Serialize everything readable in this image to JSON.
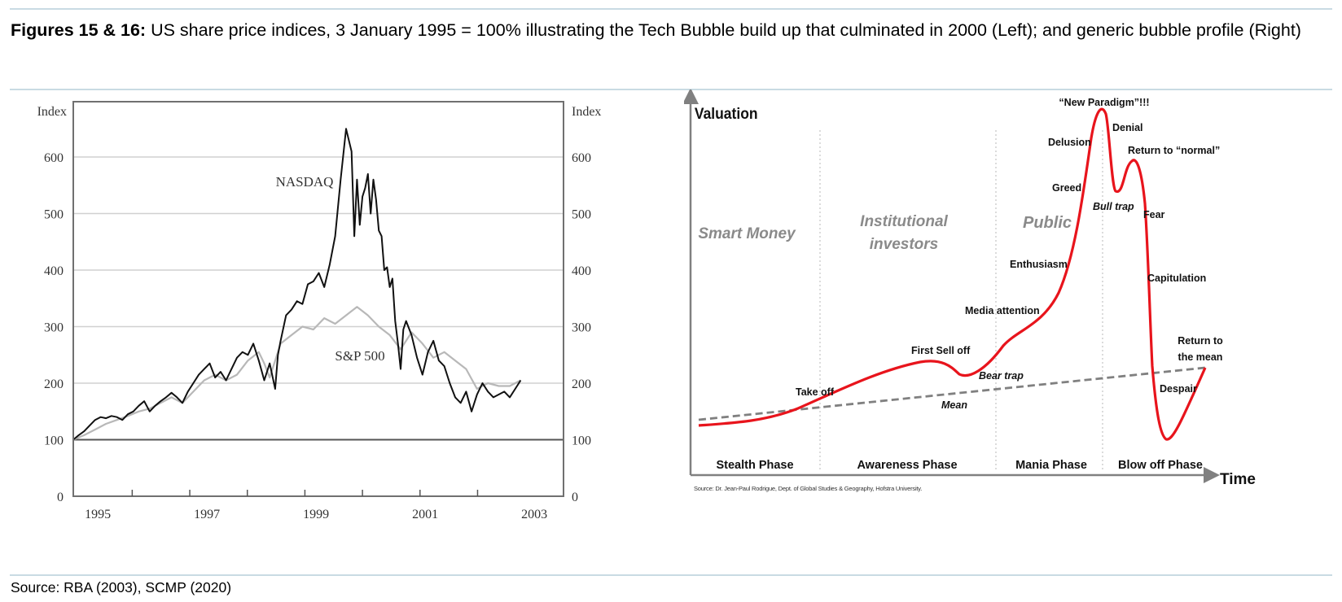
{
  "title": {
    "bold": "Figures 15 & 16:",
    "text": " US share price indices, 3 January 1995 = 100% illustrating the Tech Bubble build up that culminated in 2000 (Left); and generic bubble profile (Right)"
  },
  "source": "Source: RBA (2003), SCMP (2020)",
  "chart_data": [
    {
      "type": "line",
      "title": "US share price indices",
      "ylabel_left": "Index",
      "ylabel_right": "Index",
      "ylim": [
        0,
        700
      ],
      "yticks": [
        "0",
        "100",
        "200",
        "300",
        "400",
        "500",
        "600"
      ],
      "yticks_values": [
        0,
        100,
        200,
        300,
        400,
        500,
        600
      ],
      "xticks": [
        "1995",
        "1997",
        "1999",
        "2001",
        "2003"
      ],
      "xlim": [
        1995.0,
        2003.5
      ],
      "grid": true,
      "series": [
        {
          "name": "NASDAQ",
          "color": "#111111",
          "x": [
            1995.0,
            1995.1,
            1995.2,
            1995.3,
            1995.4,
            1995.5,
            1995.6,
            1995.7,
            1995.8,
            1995.9,
            1996.0,
            1996.1,
            1996.2,
            1996.3,
            1996.4,
            1996.5,
            1996.6,
            1996.7,
            1996.8,
            1996.9,
            1997.0,
            1997.1,
            1997.2,
            1997.3,
            1997.4,
            1997.5,
            1997.6,
            1997.7,
            1997.8,
            1997.9,
            1998.0,
            1998.1,
            1998.2,
            1998.3,
            1998.4,
            1998.5,
            1998.6,
            1998.7,
            1998.75,
            1998.8,
            1998.9,
            1999.0,
            1999.1,
            1999.2,
            1999.3,
            1999.4,
            1999.5,
            1999.6,
            1999.7,
            1999.8,
            1999.9,
            2000.0,
            2000.1,
            2000.15,
            2000.2,
            2000.25,
            2000.3,
            2000.35,
            2000.4,
            2000.45,
            2000.5,
            2000.55,
            2000.6,
            2000.65,
            2000.7,
            2000.75,
            2000.8,
            2000.85,
            2000.9,
            2000.95,
            2001.0,
            2001.05,
            2001.1,
            2001.2,
            2001.3,
            2001.4,
            2001.5,
            2001.6,
            2001.7,
            2001.8,
            2001.9,
            2002.0,
            2002.1,
            2002.2,
            2002.3,
            2002.4,
            2002.5,
            2002.6,
            2002.7,
            2002.8,
            2002.9,
            2003.0,
            2003.1,
            2003.2
          ],
          "values": [
            100,
            108,
            115,
            125,
            135,
            140,
            138,
            142,
            140,
            135,
            145,
            150,
            160,
            168,
            150,
            160,
            168,
            175,
            183,
            175,
            165,
            185,
            200,
            215,
            225,
            235,
            210,
            220,
            205,
            225,
            245,
            255,
            250,
            270,
            240,
            205,
            235,
            190,
            250,
            275,
            320,
            330,
            345,
            340,
            375,
            380,
            395,
            370,
            410,
            460,
            560,
            650,
            610,
            460,
            560,
            480,
            530,
            545,
            570,
            500,
            560,
            525,
            470,
            460,
            400,
            405,
            370,
            385,
            310,
            270,
            225,
            295,
            310,
            285,
            245,
            215,
            255,
            275,
            240,
            230,
            200,
            175,
            165,
            185,
            150,
            180,
            200,
            185,
            175,
            180,
            185,
            175,
            190,
            205
          ]
        },
        {
          "name": "S&P 500",
          "color": "#b8b8b8",
          "x": [
            1995.0,
            1995.2,
            1995.4,
            1995.6,
            1995.8,
            1996.0,
            1996.2,
            1996.4,
            1996.6,
            1996.8,
            1997.0,
            1997.2,
            1997.4,
            1997.6,
            1997.8,
            1998.0,
            1998.2,
            1998.4,
            1998.5,
            1998.6,
            1998.8,
            1999.0,
            1999.2,
            1999.4,
            1999.6,
            1999.8,
            2000.0,
            2000.2,
            2000.4,
            2000.6,
            2000.8,
            2001.0,
            2001.2,
            2001.4,
            2001.6,
            2001.8,
            2002.0,
            2002.2,
            2002.4,
            2002.6,
            2002.8,
            2003.0,
            2003.2
          ],
          "values": [
            100,
            108,
            118,
            128,
            135,
            142,
            150,
            155,
            165,
            175,
            165,
            185,
            205,
            215,
            205,
            215,
            240,
            255,
            235,
            210,
            270,
            285,
            300,
            295,
            315,
            305,
            320,
            335,
            320,
            300,
            285,
            260,
            290,
            270,
            245,
            255,
            240,
            225,
            190,
            200,
            195,
            195,
            205
          ]
        }
      ],
      "annotations": [
        "NASDAQ",
        "S&P 500"
      ]
    },
    {
      "type": "line",
      "title": "Generic bubble profile",
      "ylabel": "Valuation",
      "xlabel": "Time",
      "phases": [
        "Stealth Phase",
        "Awareness Phase",
        "Mania Phase",
        "Blow off Phase"
      ],
      "participants": [
        "Smart Money",
        "Institutional investors",
        "Public"
      ],
      "participant_lines": [
        [
          "Smart Money"
        ],
        [
          "Institutional",
          "investors"
        ],
        [
          "Public"
        ]
      ],
      "series": [
        {
          "name": "Valuation",
          "color": "#e8141c"
        },
        {
          "name": "Mean",
          "color": "#808080",
          "style": "dashed"
        }
      ],
      "labels": {
        "new_paradigm": "“New Paradigm”!!!",
        "denial": "Denial",
        "delusion": "Delusion",
        "return_normal": "Return to “normal”",
        "greed": "Greed",
        "bull_trap": "Bull trap",
        "fear": "Fear",
        "enthusiasm": "Enthusiasm",
        "capitulation": "Capitulation",
        "media_attention": "Media attention",
        "first_sell_off": "First Sell off",
        "bear_trap": "Bear trap",
        "take_off": "Take off",
        "mean": "Mean",
        "return_mean_1": "Return to",
        "return_mean_2": "the mean",
        "despair": "Despair"
      },
      "source": "Source: Dr. Jean-Paul Rodrigue, Dept. of Global Studies & Geography, Hofstra University."
    }
  ]
}
